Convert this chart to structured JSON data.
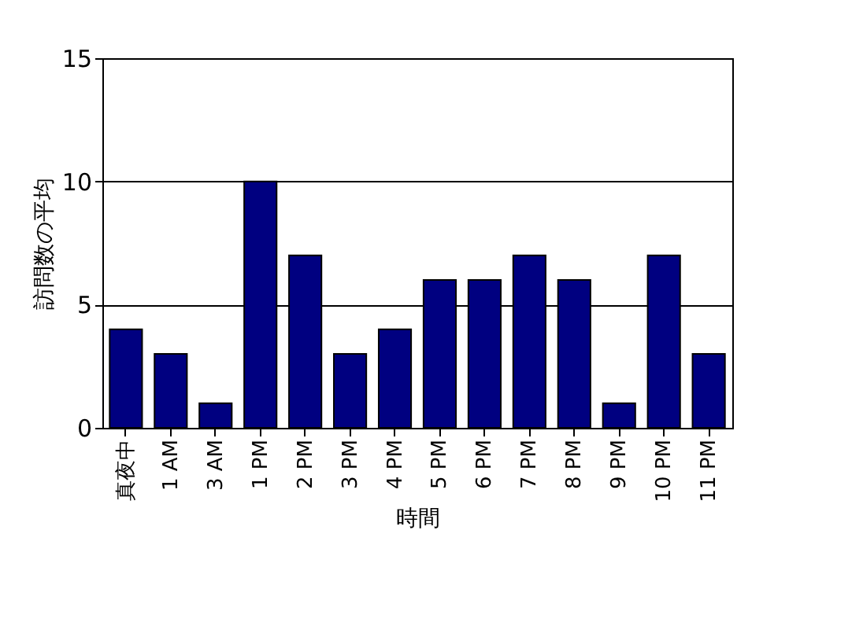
{
  "chart_data": {
    "type": "bar",
    "xlabel": "時間",
    "ylabel": "訪問数の平均",
    "categories": [
      "真夜中",
      "1 AM",
      "3 AM",
      "1 PM",
      "2 PM",
      "3 PM",
      "4 PM",
      "5 PM",
      "6 PM",
      "7 PM",
      "8 PM",
      "9 PM",
      "10 PM",
      "11 PM"
    ],
    "values": [
      4,
      3,
      1,
      10,
      7,
      3,
      4,
      6,
      6,
      7,
      6,
      1,
      7,
      3
    ],
    "color": "#000080",
    "ylim": [
      0,
      15
    ],
    "yticks": [
      0,
      5,
      10,
      15
    ],
    "grid": "y"
  }
}
